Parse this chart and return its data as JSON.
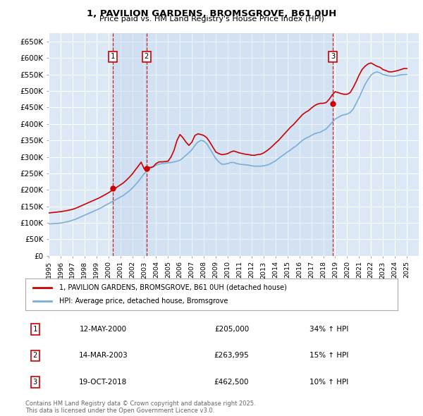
{
  "title": "1, PAVILION GARDENS, BROMSGROVE, B61 0UH",
  "subtitle": "Price paid vs. HM Land Registry's House Price Index (HPI)",
  "ylim": [
    0,
    675000
  ],
  "yticks": [
    0,
    50000,
    100000,
    150000,
    200000,
    250000,
    300000,
    350000,
    400000,
    450000,
    500000,
    550000,
    600000,
    650000
  ],
  "ytick_labels": [
    "£0",
    "£50K",
    "£100K",
    "£150K",
    "£200K",
    "£250K",
    "£300K",
    "£350K",
    "£400K",
    "£450K",
    "£500K",
    "£550K",
    "£600K",
    "£650K"
  ],
  "xlim_start": 1995.0,
  "xlim_end": 2026.0,
  "xticks": [
    1995,
    1996,
    1997,
    1998,
    1999,
    2000,
    2001,
    2002,
    2003,
    2004,
    2005,
    2006,
    2007,
    2008,
    2009,
    2010,
    2011,
    2012,
    2013,
    2014,
    2015,
    2016,
    2017,
    2018,
    2019,
    2020,
    2021,
    2022,
    2023,
    2024,
    2025
  ],
  "background_color": "#ffffff",
  "plot_bg_color": "#dce8f5",
  "grid_color": "#ffffff",
  "red_line_color": "#cc0000",
  "blue_line_color": "#7aaed6",
  "sale_marker_color": "#cc0000",
  "annotation_box_color": "#cc0000",
  "shade_color": "#c5d9ee",
  "legend_label_red": "1, PAVILION GARDENS, BROMSGROVE, B61 0UH (detached house)",
  "legend_label_blue": "HPI: Average price, detached house, Bromsgrove",
  "transactions": [
    {
      "num": 1,
      "date_year": 2000.36,
      "price": 205000,
      "label": "12-MAY-2000",
      "price_str": "£205,000",
      "change": "34% ↑ HPI"
    },
    {
      "num": 2,
      "date_year": 2003.2,
      "price": 263995,
      "label": "14-MAR-2003",
      "price_str": "£263,995",
      "change": "15% ↑ HPI"
    },
    {
      "num": 3,
      "date_year": 2018.8,
      "price": 462500,
      "label": "19-OCT-2018",
      "price_str": "£462,500",
      "change": "10% ↑ HPI"
    }
  ],
  "footer_text": "Contains HM Land Registry data © Crown copyright and database right 2025.\nThis data is licensed under the Open Government Licence v3.0.",
  "hpi_data_x": [
    1995.0,
    1995.25,
    1995.5,
    1995.75,
    1996.0,
    1996.25,
    1996.5,
    1996.75,
    1997.0,
    1997.25,
    1997.5,
    1997.75,
    1998.0,
    1998.25,
    1998.5,
    1998.75,
    1999.0,
    1999.25,
    1999.5,
    1999.75,
    2000.0,
    2000.25,
    2000.5,
    2000.75,
    2001.0,
    2001.25,
    2001.5,
    2001.75,
    2002.0,
    2002.25,
    2002.5,
    2002.75,
    2003.0,
    2003.25,
    2003.5,
    2003.75,
    2004.0,
    2004.25,
    2004.5,
    2004.75,
    2005.0,
    2005.25,
    2005.5,
    2005.75,
    2006.0,
    2006.25,
    2006.5,
    2006.75,
    2007.0,
    2007.25,
    2007.5,
    2007.75,
    2008.0,
    2008.25,
    2008.5,
    2008.75,
    2009.0,
    2009.25,
    2009.5,
    2009.75,
    2010.0,
    2010.25,
    2010.5,
    2010.75,
    2011.0,
    2011.25,
    2011.5,
    2011.75,
    2012.0,
    2012.25,
    2012.5,
    2012.75,
    2013.0,
    2013.25,
    2013.5,
    2013.75,
    2014.0,
    2014.25,
    2014.5,
    2014.75,
    2015.0,
    2015.25,
    2015.5,
    2015.75,
    2016.0,
    2016.25,
    2016.5,
    2016.75,
    2017.0,
    2017.25,
    2017.5,
    2017.75,
    2018.0,
    2018.25,
    2018.5,
    2018.75,
    2019.0,
    2019.25,
    2019.5,
    2019.75,
    2020.0,
    2020.25,
    2020.5,
    2020.75,
    2021.0,
    2021.25,
    2021.5,
    2021.75,
    2022.0,
    2022.25,
    2022.5,
    2022.75,
    2023.0,
    2023.25,
    2023.5,
    2023.75,
    2024.0,
    2024.25,
    2024.5,
    2024.75,
    2025.0
  ],
  "hpi_data_y": [
    97000,
    97500,
    98000,
    98500,
    99500,
    101000,
    103000,
    105000,
    108000,
    111000,
    115000,
    119000,
    123000,
    127000,
    131000,
    135000,
    139000,
    143000,
    148000,
    153000,
    158000,
    163000,
    168000,
    173000,
    178000,
    183000,
    190000,
    197000,
    205000,
    215000,
    225000,
    237000,
    249000,
    258000,
    265000,
    270000,
    275000,
    278000,
    280000,
    281000,
    282000,
    283000,
    285000,
    287000,
    290000,
    297000,
    305000,
    313000,
    322000,
    335000,
    345000,
    350000,
    348000,
    340000,
    325000,
    310000,
    295000,
    285000,
    278000,
    278000,
    280000,
    283000,
    283000,
    280000,
    278000,
    277000,
    276000,
    275000,
    273000,
    272000,
    272000,
    272000,
    273000,
    275000,
    278000,
    283000,
    288000,
    295000,
    302000,
    308000,
    315000,
    321000,
    328000,
    334000,
    342000,
    350000,
    356000,
    360000,
    365000,
    370000,
    373000,
    375000,
    380000,
    385000,
    395000,
    405000,
    415000,
    420000,
    425000,
    428000,
    430000,
    435000,
    445000,
    462000,
    480000,
    500000,
    520000,
    535000,
    548000,
    555000,
    558000,
    555000,
    550000,
    548000,
    546000,
    545000,
    545000,
    547000,
    549000,
    550000,
    550000
  ],
  "red_data_x": [
    1995.0,
    1995.25,
    1995.5,
    1995.75,
    1996.0,
    1996.25,
    1996.5,
    1996.75,
    1997.0,
    1997.25,
    1997.5,
    1997.75,
    1998.0,
    1998.25,
    1998.5,
    1998.75,
    1999.0,
    1999.25,
    1999.5,
    1999.75,
    2000.0,
    2000.25,
    2000.5,
    2000.75,
    2001.0,
    2001.25,
    2001.5,
    2001.75,
    2002.0,
    2002.25,
    2002.5,
    2002.75,
    2003.0,
    2003.25,
    2003.5,
    2003.75,
    2004.0,
    2004.25,
    2004.5,
    2004.75,
    2005.0,
    2005.25,
    2005.5,
    2005.75,
    2006.0,
    2006.25,
    2006.5,
    2006.75,
    2007.0,
    2007.25,
    2007.5,
    2007.75,
    2008.0,
    2008.25,
    2008.5,
    2008.75,
    2009.0,
    2009.25,
    2009.5,
    2009.75,
    2010.0,
    2010.25,
    2010.5,
    2010.75,
    2011.0,
    2011.25,
    2011.5,
    2011.75,
    2012.0,
    2012.25,
    2012.5,
    2012.75,
    2013.0,
    2013.25,
    2013.5,
    2013.75,
    2014.0,
    2014.25,
    2014.5,
    2014.75,
    2015.0,
    2015.25,
    2015.5,
    2015.75,
    2016.0,
    2016.25,
    2016.5,
    2016.75,
    2017.0,
    2017.25,
    2017.5,
    2017.75,
    2018.0,
    2018.25,
    2018.5,
    2018.75,
    2019.0,
    2019.25,
    2019.5,
    2019.75,
    2020.0,
    2020.25,
    2020.5,
    2020.75,
    2021.0,
    2021.25,
    2021.5,
    2021.75,
    2022.0,
    2022.25,
    2022.5,
    2022.75,
    2023.0,
    2023.25,
    2023.5,
    2023.75,
    2024.0,
    2024.25,
    2024.5,
    2024.75,
    2025.0
  ],
  "red_data_y": [
    130000,
    131000,
    132000,
    133000,
    134000,
    135500,
    137000,
    139000,
    141000,
    144000,
    148000,
    152000,
    156000,
    160000,
    164000,
    168000,
    172000,
    176000,
    181000,
    186000,
    191000,
    197000,
    203000,
    209000,
    215000,
    221000,
    229000,
    238000,
    248000,
    260000,
    272000,
    284000,
    263995,
    268000,
    268000,
    270000,
    280000,
    285000,
    285000,
    286000,
    287000,
    300000,
    320000,
    350000,
    368000,
    358000,
    345000,
    335000,
    345000,
    365000,
    370000,
    368000,
    365000,
    358000,
    345000,
    330000,
    315000,
    310000,
    307000,
    308000,
    310000,
    315000,
    318000,
    315000,
    312000,
    310000,
    308000,
    307000,
    305000,
    305000,
    307000,
    308000,
    312000,
    318000,
    325000,
    333000,
    342000,
    350000,
    360000,
    370000,
    380000,
    390000,
    398000,
    408000,
    418000,
    428000,
    435000,
    440000,
    448000,
    455000,
    460000,
    462500,
    462500,
    465000,
    475000,
    488000,
    498000,
    495000,
    492000,
    490000,
    490000,
    495000,
    510000,
    528000,
    548000,
    565000,
    575000,
    582000,
    585000,
    580000,
    575000,
    572000,
    565000,
    562000,
    558000,
    558000,
    560000,
    562000,
    565000,
    568000,
    568000
  ]
}
